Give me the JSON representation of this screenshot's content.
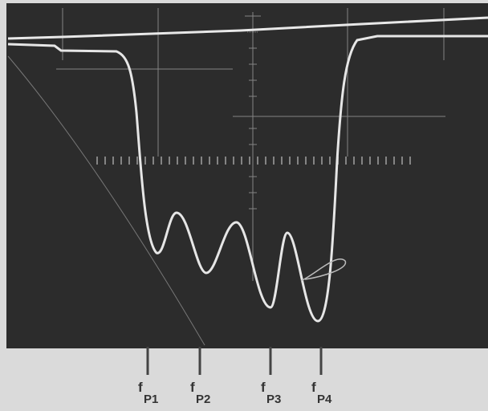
{
  "markers": [
    {
      "main": "f",
      "sub": "P1"
    },
    {
      "main": "f",
      "sub": "P2"
    },
    {
      "main": "f",
      "sub": "P3"
    },
    {
      "main": "f",
      "sub": "P4"
    }
  ]
}
